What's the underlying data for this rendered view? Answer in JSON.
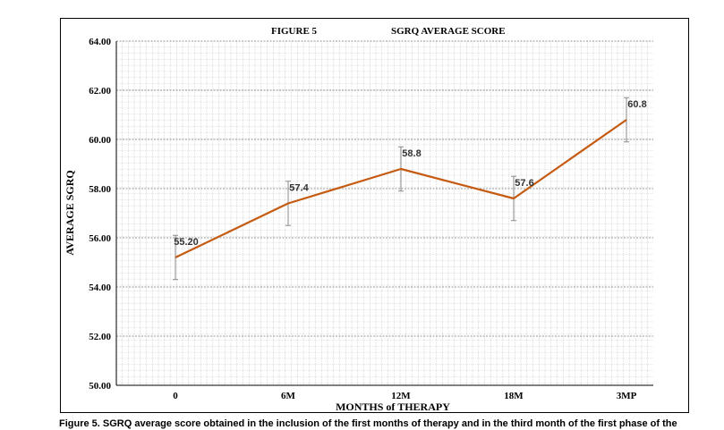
{
  "chart_data": {
    "type": "line",
    "title_left": "FIGURE 5",
    "title_right": "SGRQ AVERAGE SCORE",
    "xlabel": "MONTHS of THERAPY",
    "ylabel": "AVERAGE SGRQ",
    "categories": [
      "0",
      "6M",
      "12M",
      "18M",
      "3MP"
    ],
    "y_tick_labels": [
      "50.00",
      "52.00",
      "54.00",
      "56.00",
      "58.00",
      "60.00",
      "62.00",
      "64.00"
    ],
    "ylim": [
      50,
      64
    ],
    "grid": true,
    "series": [
      {
        "values": [
          55.2,
          57.4,
          58.8,
          57.6,
          60.8
        ],
        "data_labels": [
          "55.20",
          "57.4",
          "58.8",
          "57.6",
          "60.8"
        ],
        "error": [
          0.9,
          0.9,
          0.9,
          0.9,
          0.9
        ],
        "color": "#c55a11"
      }
    ]
  },
  "caption": "Figure 5. SGRQ average score obtained in the inclusion of the first months of therapy and in the third month of the first phase of the"
}
